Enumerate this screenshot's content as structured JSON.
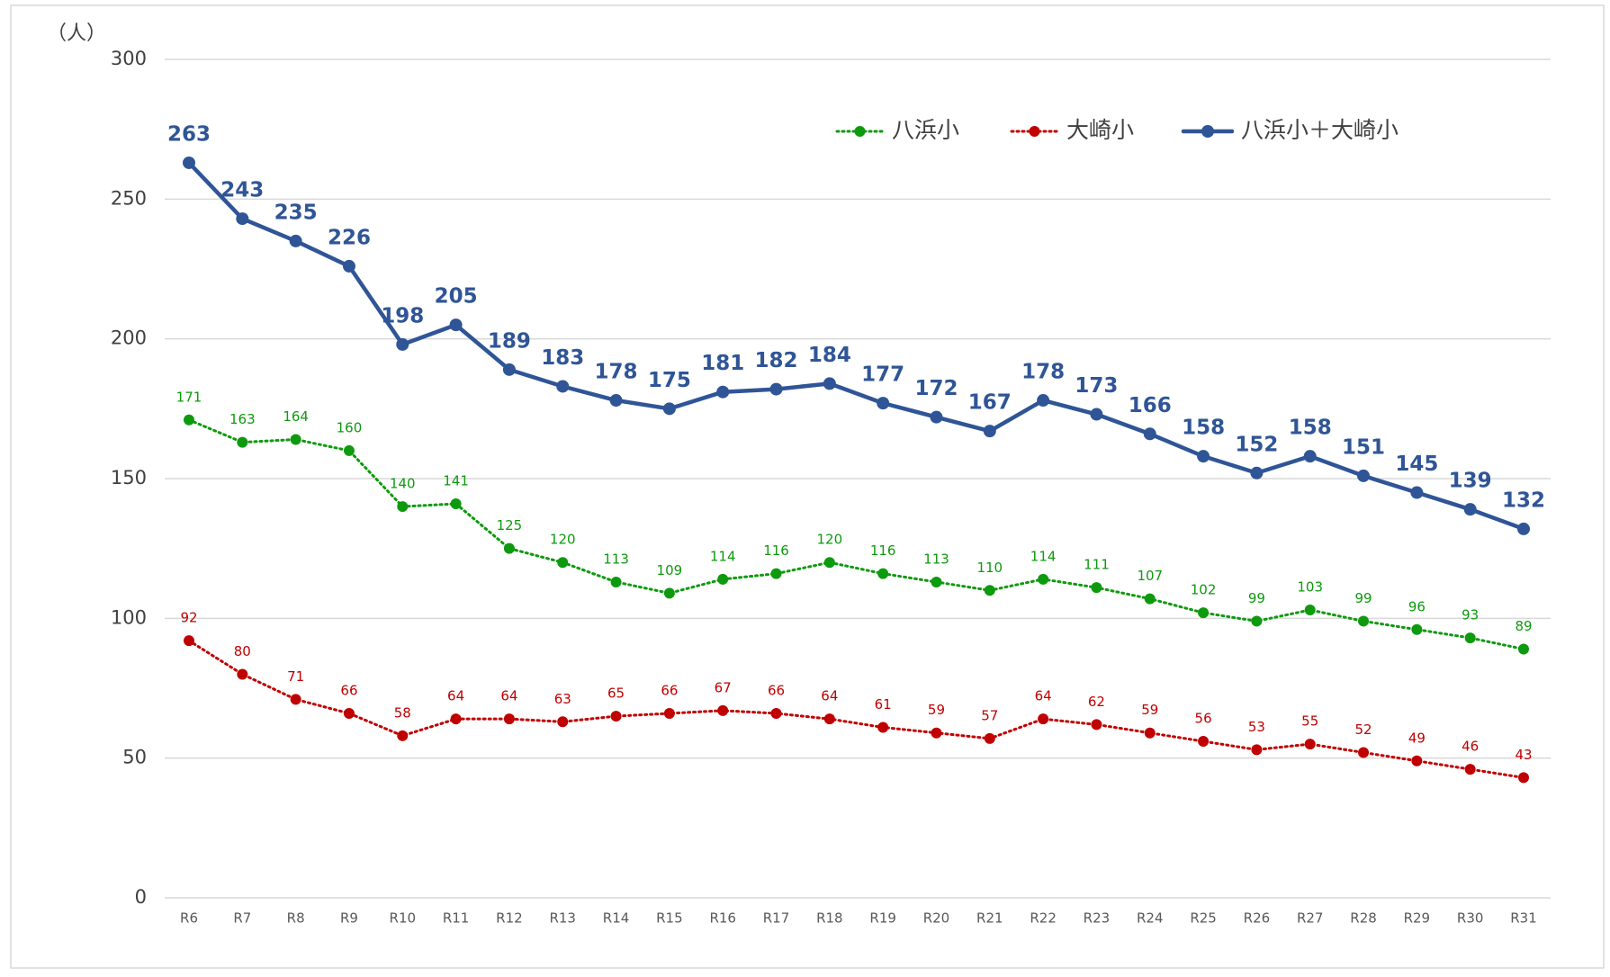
{
  "chart_data": {
    "type": "line",
    "y_unit_label": "（人）",
    "categories": [
      "R6",
      "R7",
      "R8",
      "R9",
      "R10",
      "R11",
      "R12",
      "R13",
      "R14",
      "R15",
      "R16",
      "R17",
      "R18",
      "R19",
      "R20",
      "R21",
      "R22",
      "R23",
      "R24",
      "R25",
      "R26",
      "R27",
      "R28",
      "R29",
      "R30",
      "R31"
    ],
    "series": [
      {
        "name": "八浜小",
        "color": "#0e9a0e",
        "style": "dotted",
        "values": [
          171,
          163,
          164,
          160,
          140,
          141,
          125,
          120,
          113,
          109,
          114,
          116,
          120,
          116,
          113,
          110,
          114,
          111,
          107,
          102,
          99,
          103,
          99,
          96,
          93,
          89
        ]
      },
      {
        "name": "大崎小",
        "color": "#c00000",
        "style": "dotted",
        "values": [
          92,
          80,
          71,
          66,
          58,
          64,
          64,
          63,
          65,
          66,
          67,
          66,
          64,
          61,
          59,
          57,
          64,
          62,
          59,
          56,
          53,
          55,
          52,
          49,
          46,
          43
        ]
      },
      {
        "name": "八浜小＋大崎小",
        "color": "#2f5597",
        "style": "solid",
        "values": [
          263,
          243,
          235,
          226,
          198,
          205,
          189,
          183,
          178,
          175,
          181,
          182,
          184,
          177,
          172,
          167,
          178,
          173,
          166,
          158,
          152,
          158,
          151,
          145,
          139,
          132
        ]
      }
    ],
    "ylim": [
      0,
      300
    ],
    "yticks": [
      0,
      50,
      100,
      150,
      200,
      250,
      300
    ],
    "grid": true,
    "legend": "top-right"
  }
}
